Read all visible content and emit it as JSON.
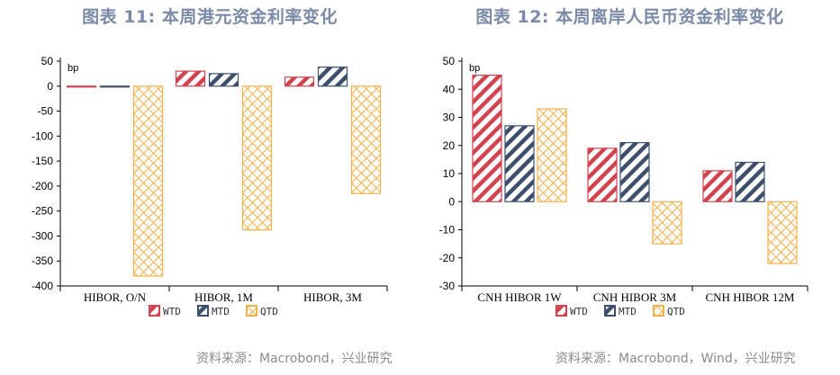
{
  "chart_data": [
    {
      "type": "bar",
      "title": "图表 11: 本周港元资金利率变化",
      "unit": "bp",
      "categories": [
        "HIBOR, O/N",
        "HIBOR, 1M",
        "HIBOR, 3M"
      ],
      "series": [
        {
          "name": "WTD",
          "values": [
            -1,
            30,
            18
          ]
        },
        {
          "name": "MTD",
          "values": [
            -1,
            25,
            38
          ]
        },
        {
          "name": "QTD",
          "values": [
            -380,
            -288,
            -215
          ]
        }
      ],
      "ylim": [
        -400,
        50
      ],
      "yticks": [
        50,
        0,
        -50,
        -100,
        -150,
        -200,
        -250,
        -300,
        -350,
        -400
      ],
      "source": "资料来源：Macrobond，兴业研究"
    },
    {
      "type": "bar",
      "title": "图表 12: 本周离岸人民币资金利率变化",
      "unit": "bp",
      "categories": [
        "CNH HIBOR 1W",
        "CNH HIBOR 3M",
        "CNH HIBOR 12M"
      ],
      "series": [
        {
          "name": "WTD",
          "values": [
            45,
            19,
            11
          ]
        },
        {
          "name": "MTD",
          "values": [
            27,
            21,
            14
          ]
        },
        {
          "name": "QTD",
          "values": [
            33,
            -15,
            -22
          ]
        }
      ],
      "ylim": [
        -30,
        50
      ],
      "yticks": [
        50,
        40,
        30,
        20,
        10,
        0,
        -10,
        -20,
        -30
      ],
      "source": "资料来源：Macrobond，Wind，兴业研究"
    }
  ],
  "series_colors": {
    "WTD": "#d0434f",
    "MTD": "#3e4f6b",
    "QTD": "#f2b14a"
  }
}
